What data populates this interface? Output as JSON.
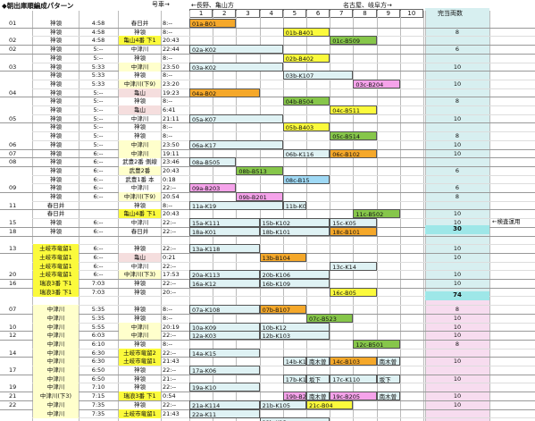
{
  "title": "◆朝出庫順編成パターン",
  "header": {
    "gou": "号車→",
    "dir_left": "←長野、亀山方",
    "dir_right": "名古屋、岐阜方→",
    "cap": "完当両数",
    "cols": [
      "1",
      "2",
      "3",
      "4",
      "5",
      "6",
      "7",
      "8",
      "9",
      "10"
    ]
  },
  "totals": [
    "30",
    "74"
  ],
  "side_note": "←検査運用",
  "rows": [
    {
      "g": "01",
      "s": "神領",
      "sb": "",
      "t": "4:58",
      "dest": "春日井",
      "db": "",
      "dt": "8:--",
      "bars": [],
      "cap": ""
    },
    {
      "g": "",
      "s": "神領",
      "sb": "",
      "t": "4:58",
      "dest": "神領",
      "db": "",
      "dt": "8:--",
      "bars": [],
      "cap": "8"
    },
    {
      "g": "02",
      "s": "神領",
      "sb": "",
      "t": "4:58",
      "dest": "亀山4番 下1",
      "db": "yel",
      "dt": "20:43",
      "bars": [],
      "cap": ""
    },
    {
      "g": "02",
      "s": "神領",
      "sb": "",
      "t": "5:--",
      "dest": "中津川",
      "db": "",
      "dt": "22:44",
      "bars": [],
      "cap": "6"
    },
    {
      "g": "",
      "s": "神領",
      "sb": "",
      "t": "5:--",
      "dest": "神領",
      "db": "",
      "dt": "8:--",
      "bars": [],
      "cap": ""
    },
    {
      "g": "03",
      "s": "神領",
      "sb": "",
      "t": "5:33",
      "dest": "中津川",
      "db": "stc",
      "dt": "23:50",
      "bars": [],
      "cap": "10"
    },
    {
      "g": "",
      "s": "神領",
      "sb": "",
      "t": "5:33",
      "dest": "神領",
      "db": "",
      "dt": "8:--",
      "bars": [],
      "cap": ""
    },
    {
      "g": "",
      "s": "神領",
      "sb": "",
      "t": "5:33",
      "dest": "中津川(下9)",
      "db": "stc",
      "dt": "23:20",
      "bars": [],
      "cap": "10"
    },
    {
      "g": "04",
      "s": "神領",
      "sb": "",
      "t": "5:--",
      "dest": "亀山",
      "db": "pn1",
      "dt": "19:23",
      "bars": [],
      "cap": ""
    },
    {
      "g": "",
      "s": "神領",
      "sb": "",
      "t": "5:--",
      "dest": "神領",
      "db": "",
      "dt": "8:--",
      "bars": [],
      "cap": "8"
    },
    {
      "g": "",
      "s": "神領",
      "sb": "",
      "t": "5:--",
      "dest": "亀山",
      "db": "pn1",
      "dt": "6:41",
      "bars": [],
      "cap": ""
    },
    {
      "g": "05",
      "s": "神領",
      "sb": "",
      "t": "5:--",
      "dest": "中津川",
      "db": "",
      "dt": "21:11",
      "bars": [],
      "cap": "10"
    },
    {
      "g": "",
      "s": "神領",
      "sb": "",
      "t": "5:--",
      "dest": "神領",
      "db": "",
      "dt": "8:--",
      "bars": [],
      "cap": ""
    },
    {
      "g": "",
      "s": "神領",
      "sb": "",
      "t": "5:--",
      "dest": "神領",
      "db": "",
      "dt": "8:--",
      "bars": [],
      "cap": "8"
    },
    {
      "g": "06",
      "s": "神領",
      "sb": "",
      "t": "5:--",
      "dest": "中津川",
      "db": "stc",
      "dt": "23:50",
      "bars": [],
      "cap": "10"
    },
    {
      "g": "07",
      "s": "神領",
      "sb": "",
      "t": "6:--",
      "dest": "中津川",
      "db": "stc",
      "dt": "19:11",
      "bars": [],
      "cap": "10"
    },
    {
      "g": "08",
      "s": "神領",
      "sb": "",
      "t": "6:--",
      "dest": "武豊2番 側線",
      "db": "",
      "dt": "23:46",
      "bars": [],
      "cap": ""
    },
    {
      "g": "",
      "s": "神領",
      "sb": "",
      "t": "6:--",
      "dest": "武豊2番",
      "db": "stc",
      "dt": "20:43",
      "bars": [],
      "cap": "6"
    },
    {
      "g": "",
      "s": "神領",
      "sb": "",
      "t": "6:--",
      "dest": "武豊1番 本",
      "db": "",
      "dt": "0:18",
      "bars": [],
      "cap": ""
    },
    {
      "g": "09",
      "s": "神領",
      "sb": "",
      "t": "6:--",
      "dest": "中津川",
      "db": "",
      "dt": "22:--",
      "bars": [],
      "cap": "6"
    },
    {
      "g": "",
      "s": "神領",
      "sb": "",
      "t": "6:--",
      "dest": "中津川(下9)",
      "db": "stc",
      "dt": "20:54",
      "bars": [],
      "cap": "8"
    },
    {
      "g": "11",
      "s": "春日井",
      "sb": "",
      "t": "",
      "dest": "神領",
      "db": "",
      "dt": "8:--",
      "bars": [],
      "cap": ""
    },
    {
      "g": "",
      "s": "春日井",
      "sb": "",
      "t": "",
      "dest": "亀山4番 下1",
      "db": "yel",
      "dt": "20:43",
      "bars": [],
      "cap": "10"
    },
    {
      "g": "15",
      "s": "神領",
      "sb": "",
      "t": "6:--",
      "dest": "中津川",
      "db": "",
      "dt": "22:--",
      "bars": [],
      "cap": "10"
    },
    {
      "g": "18",
      "s": "神領",
      "sb": "",
      "t": "6:--",
      "dest": "春日井",
      "db": "",
      "dt": "22:--",
      "bars": [],
      "cap": "10"
    },
    {
      "g": "",
      "s": "",
      "sb": "",
      "t": "",
      "dest": "",
      "db": "",
      "dt": "",
      "bars": [],
      "cap": ""
    },
    {
      "g": "13",
      "s": "土岐市竜留1",
      "sb": "yel",
      "t": "6:--",
      "dest": "神領",
      "db": "",
      "dt": "22:--",
      "bars": [],
      "cap": "10"
    },
    {
      "g": "",
      "s": "土岐市竜留1",
      "sb": "yel",
      "t": "6:--",
      "dest": "亀山",
      "db": "pn1",
      "dt": "0:21",
      "bars": [],
      "cap": "10"
    },
    {
      "g": "",
      "s": "土岐市竜留1",
      "sb": "yel",
      "t": "6:--",
      "dest": "中津川",
      "db": "",
      "dt": "22:--",
      "bars": [],
      "cap": ""
    },
    {
      "g": "20",
      "s": "土岐市竜留1",
      "sb": "yel",
      "t": "6:--",
      "dest": "中津川(下3)",
      "db": "stc",
      "dt": "17:53",
      "bars": [],
      "cap": "10"
    },
    {
      "g": "16",
      "s": "瑞浪3番 下1",
      "sb": "yel",
      "t": "7:03",
      "dest": "神領",
      "db": "",
      "dt": "22:--",
      "bars": [],
      "cap": "10"
    },
    {
      "g": "",
      "s": "瑞浪3番 下1",
      "sb": "yel",
      "t": "7:03",
      "dest": "神領",
      "db": "",
      "dt": "20:--",
      "bars": [],
      "cap": ""
    },
    {
      "g": "",
      "s": "",
      "sb": "",
      "t": "",
      "dest": "",
      "db": "",
      "dt": "",
      "bars": [],
      "cap": ""
    },
    {
      "g": "07",
      "s": "中津川",
      "sb": "stc",
      "t": "5:35",
      "dest": "神領",
      "db": "",
      "dt": "8:--",
      "bars": [],
      "cap": "8"
    },
    {
      "g": "",
      "s": "中津川",
      "sb": "stc",
      "t": "5:35",
      "dest": "神領",
      "db": "",
      "dt": "8:--",
      "bars": [],
      "cap": "10"
    },
    {
      "g": "10",
      "s": "中津川",
      "sb": "stc",
      "t": "5:55",
      "dest": "中津川",
      "db": "stc",
      "dt": "20:19",
      "bars": [],
      "cap": "10"
    },
    {
      "g": "12",
      "s": "中津川",
      "sb": "stc",
      "t": "6:03",
      "dest": "中津川",
      "db": "stc",
      "dt": "22:--",
      "bars": [],
      "cap": "10"
    },
    {
      "g": "",
      "s": "中津川",
      "sb": "stc",
      "t": "6:10",
      "dest": "神領",
      "db": "",
      "dt": "8:--",
      "bars": [],
      "cap": "8"
    },
    {
      "g": "14",
      "s": "中津川",
      "sb": "stc",
      "t": "6:30",
      "dest": "土岐市竜留2",
      "db": "yel",
      "dt": "22:--",
      "bars": [],
      "cap": ""
    },
    {
      "g": "",
      "s": "中津川",
      "sb": "stc",
      "t": "6:30",
      "dest": "土岐市竜留1",
      "db": "yel",
      "dt": "21:43",
      "bars": [],
      "cap": "10"
    },
    {
      "g": "17",
      "s": "中津川",
      "sb": "stc",
      "t": "6:50",
      "dest": "神領",
      "db": "",
      "dt": "22:--",
      "bars": [],
      "cap": ""
    },
    {
      "g": "",
      "s": "中津川",
      "sb": "stc",
      "t": "6:50",
      "dest": "神領",
      "db": "",
      "dt": "21:--",
      "bars": [],
      "cap": "10"
    },
    {
      "g": "19",
      "s": "中津川",
      "sb": "stc",
      "t": "7:10",
      "dest": "神領",
      "db": "",
      "dt": "22:--",
      "bars": [],
      "cap": ""
    },
    {
      "g": "21",
      "s": "中津川(下3)",
      "sb": "stc",
      "t": "7:15",
      "dest": "瑞浪3番 下1",
      "db": "yel",
      "dt": "0:54",
      "bars": [],
      "cap": "10"
    },
    {
      "g": "22",
      "s": "中津川",
      "sb": "stc",
      "t": "7:35",
      "dest": "神領",
      "db": "",
      "dt": "22:--",
      "bars": [],
      "cap": "10"
    },
    {
      "g": "",
      "s": "中津川",
      "sb": "stc",
      "t": "7:35",
      "dest": "土岐市竜留1",
      "db": "yel",
      "dt": "21:43",
      "bars": [],
      "cap": ""
    }
  ],
  "bars": [
    {
      "r": 0,
      "a": 1,
      "b": 3,
      "txt": "01a-B01",
      "c": "ora"
    },
    {
      "r": 1,
      "a": 5,
      "b": 7,
      "txt": "01b-B401",
      "c": "yel"
    },
    {
      "r": 2,
      "a": 7,
      "b": 9,
      "txt": "01c-B509",
      "c": "grn"
    },
    {
      "r": 3,
      "a": 1,
      "b": 5,
      "txt": "02a-K02",
      "c": "lbl"
    },
    {
      "r": 4,
      "a": 5,
      "b": 7,
      "txt": "02b-B402",
      "c": "yel"
    },
    {
      "r": 5,
      "a": 1,
      "b": 5,
      "txt": "03a-K02",
      "c": "lbl"
    },
    {
      "r": 6,
      "a": 5,
      "b": 8,
      "txt": "03b-K107",
      "c": "lbl"
    },
    {
      "r": 7,
      "a": 8,
      "b": 10,
      "txt": "03c-B204",
      "c": "mag"
    },
    {
      "r": 8,
      "a": 1,
      "b": 4,
      "txt": "04a-B02",
      "c": "ora"
    },
    {
      "r": 9,
      "a": 5,
      "b": 7,
      "txt": "04b-B504",
      "c": "grn"
    },
    {
      "r": 10,
      "a": 7,
      "b": 9,
      "txt": "04c-B511",
      "c": "yel"
    },
    {
      "r": 11,
      "a": 1,
      "b": 5,
      "txt": "05a-K07",
      "c": "lbl"
    },
    {
      "r": 12,
      "a": 5,
      "b": 7,
      "txt": "05b-B403",
      "c": "yel"
    },
    {
      "r": 13,
      "a": 7,
      "b": 9,
      "txt": "05c-B514",
      "c": "grn"
    },
    {
      "r": 14,
      "a": 1,
      "b": 5,
      "txt": "06a-K17",
      "c": "lbl"
    },
    {
      "r": 15,
      "a": 5,
      "b": 7,
      "txt": "06b-K116",
      "c": "lbl"
    },
    {
      "r": 15,
      "a": 7,
      "b": 9,
      "txt": "06c-B102",
      "c": "ora"
    },
    {
      "r": 16,
      "a": 1,
      "b": 3,
      "txt": "08a-B505",
      "c": "lbl"
    },
    {
      "r": 17,
      "a": 3,
      "b": 5,
      "txt": "08b-B513",
      "c": "grn"
    },
    {
      "r": 18,
      "a": 5,
      "b": 7,
      "txt": "08c-B15",
      "c": "cyn"
    },
    {
      "r": 19,
      "a": 1,
      "b": 3,
      "txt": "09a-B203",
      "c": "mag"
    },
    {
      "r": 20,
      "a": 3,
      "b": 5,
      "txt": "09b-B201",
      "c": "mag"
    },
    {
      "r": 21,
      "a": 1,
      "b": 5,
      "txt": "11a-K19",
      "c": "lbl"
    },
    {
      "r": 21,
      "a": 5,
      "b": 6,
      "txt": "11b-K04",
      "c": "lbl"
    },
    {
      "r": 22,
      "a": 8,
      "b": 10,
      "txt": "11c-B502",
      "c": "grn"
    },
    {
      "r": 23,
      "a": 1,
      "b": 4,
      "txt": "15a-K111",
      "c": "lbl"
    },
    {
      "r": 23,
      "a": 4,
      "b": 7,
      "txt": "15b-K102",
      "c": "lbl"
    },
    {
      "r": 23,
      "a": 7,
      "b": 9,
      "txt": "15c-K05",
      "c": "lbl"
    },
    {
      "r": 24,
      "a": 1,
      "b": 4,
      "txt": "18a-K01",
      "c": "lbl"
    },
    {
      "r": 24,
      "a": 4,
      "b": 7,
      "txt": "18b-K101",
      "c": "lbl"
    },
    {
      "r": 24,
      "a": 7,
      "b": 9,
      "txt": "18c-B101",
      "c": "ora"
    },
    {
      "r": 26,
      "a": 1,
      "b": 4,
      "txt": "13a-K118",
      "c": "lbl"
    },
    {
      "r": 27,
      "a": 4,
      "b": 6,
      "txt": "13b-B104",
      "c": "ora"
    },
    {
      "r": 28,
      "a": 7,
      "b": 9,
      "txt": "13c-K14",
      "c": "lbl"
    },
    {
      "r": 29,
      "a": 1,
      "b": 4,
      "txt": "20a-K113",
      "c": "lbl"
    },
    {
      "r": 29,
      "a": 4,
      "b": 7,
      "txt": "20b-K106",
      "c": "lbl"
    },
    {
      "r": 30,
      "a": 1,
      "b": 4,
      "txt": "16a-K12",
      "c": "lbl"
    },
    {
      "r": 30,
      "a": 4,
      "b": 7,
      "txt": "16b-K109",
      "c": "lbl"
    },
    {
      "r": 31,
      "a": 7,
      "b": 9,
      "txt": "16c-B05",
      "c": "yel"
    },
    {
      "r": 33,
      "a": 1,
      "b": 4,
      "txt": "07a-K108",
      "c": "lbl"
    },
    {
      "r": 33,
      "a": 4,
      "b": 6,
      "txt": "07b-B107",
      "c": "ora"
    },
    {
      "r": 34,
      "a": 6,
      "b": 8,
      "txt": "07c-B523",
      "c": "grn"
    },
    {
      "r": 35,
      "a": 1,
      "b": 4,
      "txt": "10a-K09",
      "c": "lbl"
    },
    {
      "r": 35,
      "a": 4,
      "b": 7,
      "txt": "10b-K12",
      "c": "lbl"
    },
    {
      "r": 36,
      "a": 1,
      "b": 4,
      "txt": "12a-K03",
      "c": "lbl"
    },
    {
      "r": 36,
      "a": 4,
      "b": 7,
      "txt": "12b-K103",
      "c": "lbl"
    },
    {
      "r": 37,
      "a": 8,
      "b": 10,
      "txt": "12c-B501",
      "c": "grn"
    },
    {
      "r": 38,
      "a": 1,
      "b": 4,
      "txt": "14a-K15",
      "c": "lbl"
    },
    {
      "r": 39,
      "a": 5,
      "b": 6,
      "txt": "14b-K117",
      "c": "lbl"
    },
    {
      "r": 39,
      "a": 6,
      "b": 7,
      "txt": "南木曽",
      "c": "lbl"
    },
    {
      "r": 39,
      "a": 7,
      "b": 9,
      "txt": "14c-B103",
      "c": "ora"
    },
    {
      "r": 39,
      "a": 9,
      "b": 10,
      "txt": "南木曽",
      "c": "lbl"
    },
    {
      "r": 40,
      "a": 1,
      "b": 4,
      "txt": "17a-K06",
      "c": "lbl"
    },
    {
      "r": 41,
      "a": 5,
      "b": 6,
      "txt": "17b-K112",
      "c": "lbl"
    },
    {
      "r": 41,
      "a": 6,
      "b": 7,
      "txt": "坂下",
      "c": "lbl"
    },
    {
      "r": 41,
      "a": 7,
      "b": 9,
      "txt": "17c-K110",
      "c": "lbl"
    },
    {
      "r": 41,
      "a": 9,
      "b": 10,
      "txt": "坂下",
      "c": "lbl"
    },
    {
      "r": 42,
      "a": 1,
      "b": 4,
      "txt": "19a-K10",
      "c": "lbl"
    },
    {
      "r": 43,
      "a": 5,
      "b": 6,
      "txt": "19b-B202",
      "c": "mag"
    },
    {
      "r": 43,
      "a": 6,
      "b": 7,
      "txt": "南木曽",
      "c": "lbl"
    },
    {
      "r": 43,
      "a": 7,
      "b": 9,
      "txt": "19c-B205",
      "c": "mag"
    },
    {
      "r": 43,
      "a": 9,
      "b": 10,
      "txt": "南木曽",
      "c": "lbl"
    },
    {
      "r": 44,
      "a": 1,
      "b": 4,
      "txt": "21a-K114",
      "c": "lbl"
    },
    {
      "r": 44,
      "a": 4,
      "b": 6,
      "txt": "21b-K105",
      "c": "lbl"
    },
    {
      "r": 44,
      "a": 6,
      "b": 8,
      "txt": "21c-B04",
      "c": "yel"
    },
    {
      "r": 45,
      "a": 1,
      "b": 4,
      "txt": "22a-K11",
      "c": "lbl"
    },
    {
      "r": 46,
      "a": 4,
      "b": 7,
      "txt": "22b-K13",
      "c": "lbl"
    }
  ]
}
